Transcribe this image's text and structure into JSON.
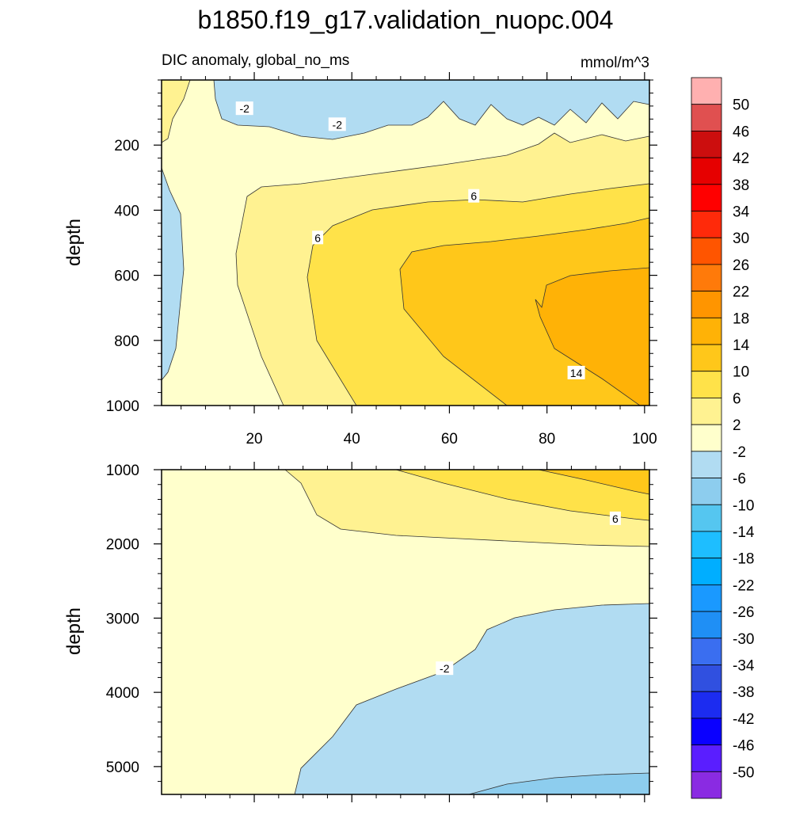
{
  "chart_data": {
    "type": "heatmap",
    "title": "b1850.f19_g17.validation_nuopc.004",
    "subtitle_left": "DIC anomaly, global_no_ms",
    "subtitle_right": "mmol/m^3",
    "ylabel": "depth",
    "colors": {
      "c_m54": "#8a2be2",
      "c_m50": "#5a1eff",
      "c_m46": "#0a00ff",
      "c_m42": "#1c2cf0",
      "c_m38": "#3050e0",
      "c_m34": "#3a6ef0",
      "c_m30": "#1f8ff5",
      "c_m26": "#1a99ff",
      "c_m22": "#00aeff",
      "c_m18": "#1ebeff",
      "c_m14": "#55c6f0",
      "c_m10": "#8dcdee",
      "c_m6": "#b1dcf2",
      "c_m2": "#ffffcc",
      "c_2": "#fff291",
      "c_6": "#ffe249",
      "c_10": "#ffc71a",
      "c_14": "#ffb206",
      "c_18": "#ff9500",
      "c_22": "#ff7a0a",
      "c_26": "#ff5500",
      "c_30": "#ff2a0a",
      "c_34": "#ff0000",
      "c_38": "#e60000",
      "c_42": "#cc0e0e",
      "c_46": "#e05050",
      "c_50": "#ffb0b0"
    },
    "panels": [
      {
        "name": "upper-ocean",
        "ylim": [
          0,
          1000
        ],
        "xlim": [
          1,
          101
        ],
        "x_ticks": [
          20,
          40,
          60,
          80,
          100
        ],
        "y_ticks": [
          200,
          400,
          600,
          800,
          1000
        ],
        "contour_labels": [
          {
            "text": "-2",
            "x": 18,
            "y": 88
          },
          {
            "text": "-2",
            "x": 37,
            "y": 137
          },
          {
            "text": "6",
            "x": 65,
            "y": 357
          },
          {
            "text": "6",
            "x": 33,
            "y": 485
          },
          {
            "text": "14",
            "x": 86,
            "y": 900
          }
        ]
      },
      {
        "name": "deep-ocean",
        "ylim": [
          1000,
          5375
        ],
        "xlim": [
          1,
          101
        ],
        "x_ticks": [],
        "y_ticks": [
          1000,
          2000,
          3000,
          4000,
          5000
        ],
        "contour_labels": [
          {
            "text": "6",
            "x": 94,
            "y": 1660
          },
          {
            "text": "-2",
            "x": 59,
            "y": 3680
          }
        ]
      }
    ],
    "colorbar": {
      "labels": [
        "50",
        "46",
        "42",
        "38",
        "34",
        "30",
        "26",
        "22",
        "18",
        "14",
        "10",
        "6",
        "2",
        "-2",
        "-6",
        "-10",
        "-14",
        "-18",
        "-22",
        "-26",
        "-30",
        "-34",
        "-38",
        "-42",
        "-46",
        "-50"
      ],
      "box_colors": [
        "c_50",
        "c_46",
        "c_42",
        "c_38",
        "c_34",
        "c_30",
        "c_26",
        "c_22",
        "c_18",
        "c_14",
        "c_10",
        "c_6",
        "c_2",
        "c_m2",
        "c_m6",
        "c_m10",
        "c_m14",
        "c_m18",
        "c_m22",
        "c_m26",
        "c_m30",
        "c_m34",
        "c_m38",
        "c_m42",
        "c_m46",
        "c_m50",
        "c_m54"
      ]
    }
  }
}
